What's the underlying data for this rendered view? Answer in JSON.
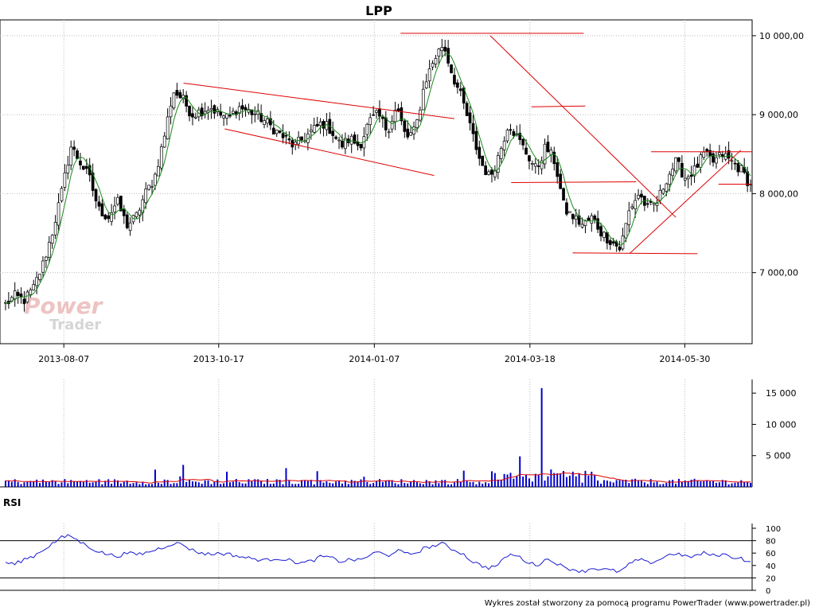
{
  "watermark": {
    "line1": "Power",
    "line2": "Trader"
  },
  "footer": "Wykres został stworzony za pomocą programu PowerTrader (www.powertrader.pl)",
  "chart_data": [
    {
      "type": "candlestick",
      "title": "LPP",
      "x_tick_labels": [
        "2013-08-07",
        "2013-10-17",
        "2014-01-07",
        "2014-03-18",
        "2014-05-30"
      ],
      "y_tick_labels": [
        "7 000,00",
        "8 000,00",
        "9 000,00",
        "10 000,00"
      ],
      "y_ticks": [
        7000,
        8000,
        9000,
        10000
      ],
      "ylim": [
        6100,
        10150
      ],
      "close_series_keypoints": [
        6600,
        6700,
        6650,
        6800,
        7100,
        7500,
        8000,
        8600,
        8400,
        8200,
        7800,
        7700,
        7900,
        7600,
        7700,
        8000,
        8200,
        8700,
        9300,
        9200,
        9000,
        9050,
        9100,
        9000,
        8950,
        9100,
        9050,
        9000,
        8900,
        8800,
        8700,
        8600,
        8700,
        8800,
        8900,
        8800,
        8600,
        8700,
        8600,
        8900,
        9000,
        8800,
        9100,
        8700,
        8800,
        9400,
        9700,
        9900,
        9500,
        9200,
        8800,
        8400,
        8200,
        8500,
        8900,
        8700,
        8500,
        8300,
        8600,
        8400,
        7800,
        7700,
        7600,
        7700,
        7500,
        7400,
        7300,
        7800,
        8000,
        7800,
        7900,
        8200,
        8400,
        8200,
        8300,
        8500,
        8400,
        8500,
        8400,
        8300,
        8100
      ],
      "trendlines": [
        {
          "from": [
            0.24,
            9400
          ],
          "to": [
            0.602,
            8950
          ]
        },
        {
          "from": [
            0.295,
            8820
          ],
          "to": [
            0.575,
            8230
          ]
        },
        {
          "from": [
            0.53,
            10030
          ],
          "to": [
            0.775,
            10030
          ]
        },
        {
          "from": [
            0.65,
            10000
          ],
          "to": [
            0.898,
            7700
          ]
        },
        {
          "from": [
            0.705,
            9100
          ],
          "to": [
            0.777,
            9110
          ]
        },
        {
          "from": [
            0.678,
            8140
          ],
          "to": [
            0.845,
            8150
          ]
        },
        {
          "from": [
            0.76,
            7250
          ],
          "to": [
            0.927,
            7240
          ]
        },
        {
          "from": [
            0.836,
            7240
          ],
          "to": [
            0.985,
            8550
          ]
        },
        {
          "from": [
            0.865,
            8530
          ],
          "to": [
            1.005,
            8530
          ]
        },
        {
          "from": [
            0.955,
            8120
          ],
          "to": [
            1.005,
            8120
          ]
        }
      ]
    },
    {
      "type": "bar",
      "title": "",
      "y_tick_labels": [
        "5 000",
        "10 000",
        "15 000"
      ],
      "y_ticks": [
        5000,
        10000,
        15000
      ],
      "ylim": [
        0,
        16800
      ],
      "notable_spike": 15800
    },
    {
      "type": "line",
      "title": "RSI",
      "y_tick_labels": [
        "0",
        "20",
        "40",
        "60",
        "80",
        "100"
      ],
      "y_ticks": [
        0,
        20,
        40,
        60,
        80,
        100
      ],
      "reference_lines": [
        20,
        80
      ],
      "ylim": [
        0,
        100
      ],
      "rsi_keypoints": [
        45,
        42,
        50,
        55,
        65,
        75,
        85,
        88,
        78,
        70,
        62,
        58,
        55,
        60,
        58,
        60,
        65,
        70,
        76,
        74,
        65,
        60,
        58,
        60,
        58,
        55,
        52,
        50,
        48,
        52,
        50,
        46,
        44,
        48,
        55,
        52,
        46,
        50,
        48,
        56,
        62,
        55,
        65,
        58,
        60,
        68,
        72,
        75,
        66,
        60,
        48,
        40,
        36,
        42,
        58,
        55,
        46,
        40,
        50,
        46,
        36,
        34,
        30,
        36,
        34,
        32,
        30,
        42,
        50,
        44,
        48,
        56,
        60,
        54,
        55,
        60,
        56,
        58,
        54,
        52,
        44
      ]
    }
  ]
}
